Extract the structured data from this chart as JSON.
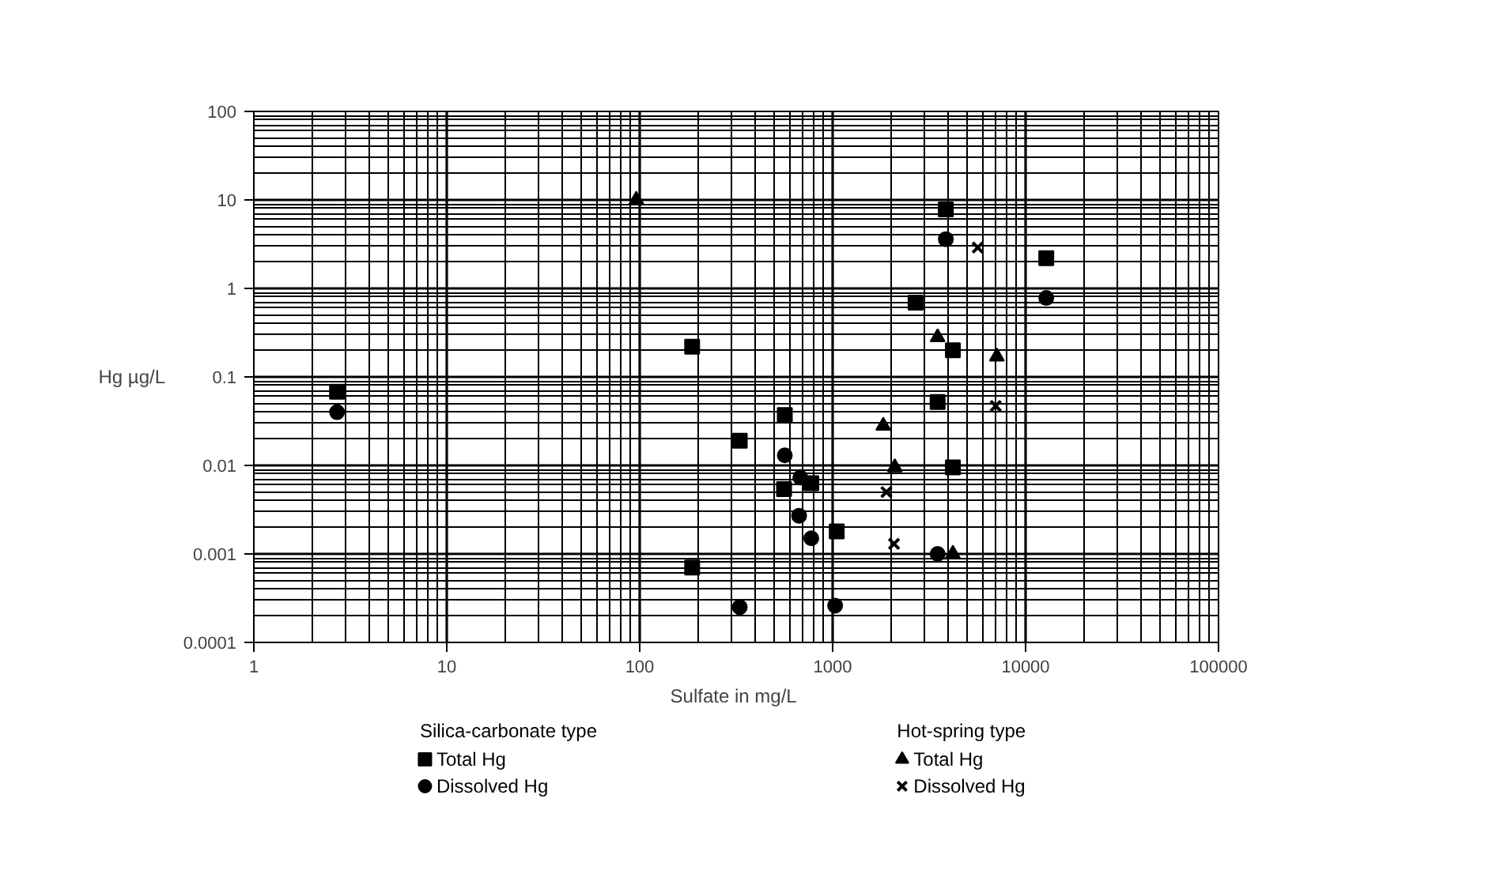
{
  "chart_data": {
    "type": "scatter",
    "xlabel": "Sulfate in  mg/L",
    "ylabel": "Hg  µg/L",
    "log": "xy",
    "xlim": [
      1,
      100000
    ],
    "ylim": [
      0.0001,
      100
    ],
    "xticks": [
      1,
      10,
      100,
      1000,
      10000,
      100000
    ],
    "yticks": [
      0.0001,
      0.001,
      0.01,
      0.1,
      1,
      10,
      100
    ],
    "grid": true,
    "legend": "bottom",
    "legend_title": [
      "Silica-carbonate type",
      null,
      "Hot-spring type",
      null
    ],
    "series": [
      {
        "name": "Total Hg",
        "marker": "square",
        "color": "#000000",
        "x": [
          2.7,
          187,
          330,
          187,
          565,
          560,
          775,
          1050,
          2690,
          3860,
          12800,
          4200,
          3500,
          4200
        ],
        "values": [
          0.068,
          0.22,
          0.019,
          0.0007,
          0.037,
          0.0054,
          0.0063,
          0.0018,
          0.69,
          7.8,
          2.2,
          0.2,
          0.052,
          0.0095
        ]
      },
      {
        "name": "Dissolved Hg",
        "marker": "circle",
        "color": "#000000",
        "x": [
          2.7,
          565,
          680,
          670,
          775,
          1030,
          330,
          3860,
          12800,
          3500
        ],
        "values": [
          0.04,
          0.013,
          0.0073,
          0.0027,
          0.0015,
          0.00026,
          0.00025,
          3.6,
          0.78,
          0.001
        ]
      },
      {
        "name": "Total Hg",
        "marker": "triangle",
        "color": "#000000",
        "x": [
          96,
          1830,
          2100,
          3500,
          7100,
          4200
        ],
        "values": [
          10,
          0.028,
          0.0095,
          0.28,
          0.17,
          0.001
        ]
      },
      {
        "name": "Dissolved Hg",
        "marker": "x",
        "color": "#000000",
        "x": [
          1900,
          2080,
          5650,
          7000
        ],
        "values": [
          0.005,
          0.0013,
          2.9,
          0.047
        ]
      }
    ]
  }
}
